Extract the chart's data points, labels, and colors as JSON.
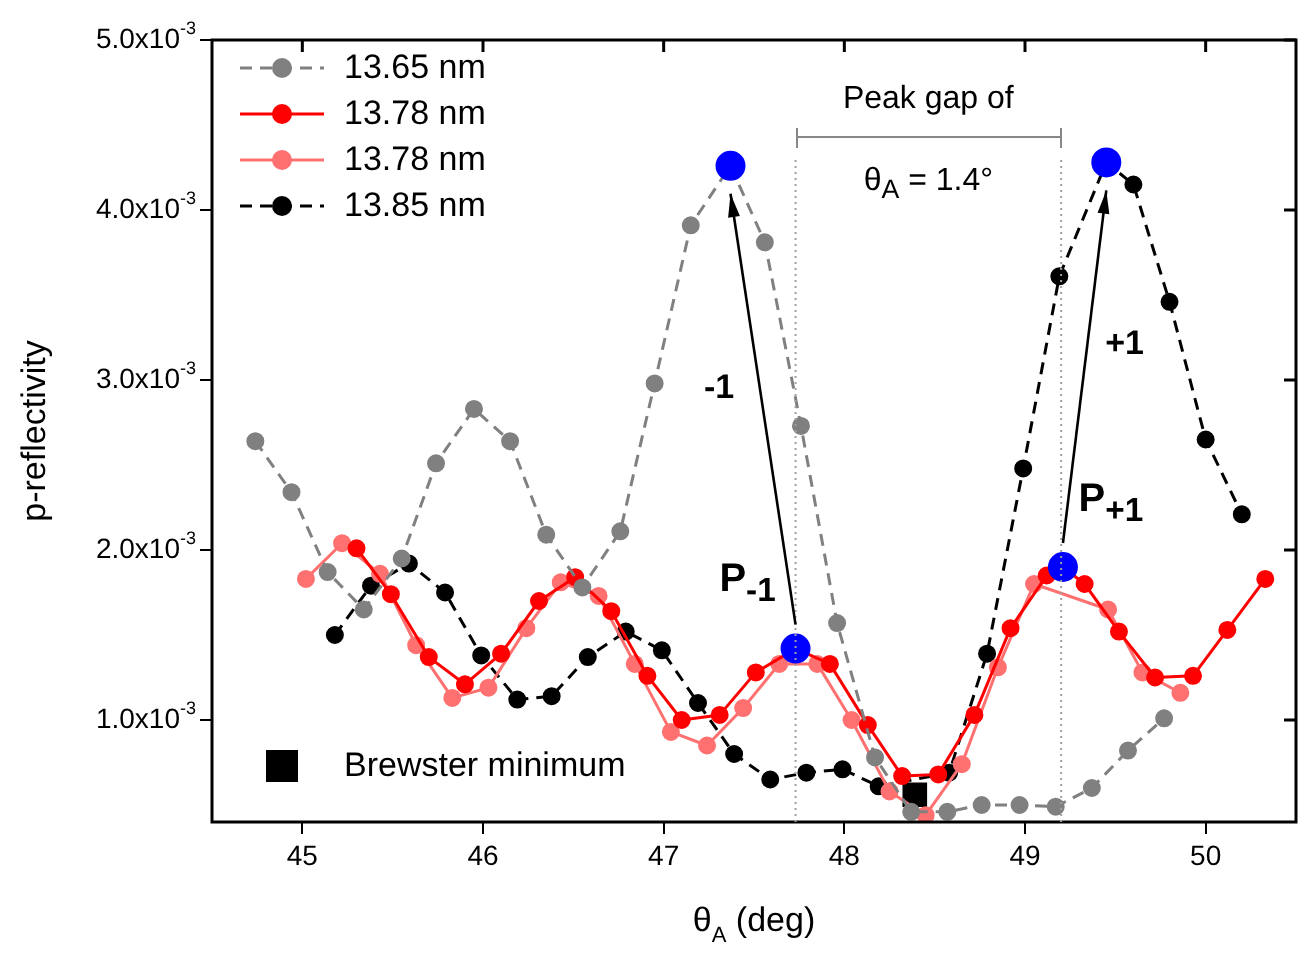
{
  "chart_data": {
    "type": "line",
    "xlabel": "θ$_{A}$ (deg)",
    "ylabel": "p-reflectivity",
    "xlim": [
      44.5,
      50.5
    ],
    "xticks": [
      45,
      46,
      47,
      48,
      49,
      50
    ],
    "ylim": [
      0.0004,
      0.005
    ],
    "yticks": [
      {
        "value": 0.001,
        "label": "1.0x10$^{-3}$"
      },
      {
        "value": 0.002,
        "label": "2.0x10$^{-3}$"
      },
      {
        "value": 0.003,
        "label": "3.0x10$^{-3}$"
      },
      {
        "value": 0.004,
        "label": "4.0x10$^{-3}$"
      },
      {
        "value": 0.005,
        "label": "5.0x10$^{-3}$"
      }
    ],
    "grid": false,
    "legend": "top left",
    "marker": "circle",
    "series": [
      {
        "name": "13.65 nm",
        "color": "#808080",
        "line_style": "dashed",
        "x": [
          44.74,
          44.94,
          45.14,
          45.34,
          45.55,
          45.74,
          45.95,
          46.15,
          46.35,
          46.55,
          46.76,
          46.95,
          47.15,
          47.37,
          47.56,
          47.76,
          47.96,
          48.17,
          48.37,
          48.57,
          48.76,
          48.97,
          49.17,
          49.37,
          49.57,
          49.77
        ],
        "values": [
          0.00264,
          0.00234,
          0.00187,
          0.00165,
          0.00195,
          0.00251,
          0.00283,
          0.00264,
          0.00209,
          0.00178,
          0.00211,
          0.00298,
          0.00391,
          0.00426,
          0.00381,
          0.00273,
          0.00157,
          0.00078,
          0.00046,
          0.00046,
          0.0005,
          0.0005,
          0.00049,
          0.0006,
          0.00082,
          0.00101
        ]
      },
      {
        "name": "13.78 nm",
        "color": "#ff0000",
        "line_style": "solid",
        "x": [
          45.3,
          45.49,
          45.7,
          45.9,
          46.1,
          46.31,
          46.51,
          46.71,
          46.91,
          47.1,
          47.31,
          47.51,
          47.73,
          47.92,
          48.13,
          48.32,
          48.52,
          48.72,
          48.92,
          49.12,
          49.21,
          49.33,
          49.52,
          49.72,
          49.93,
          50.12,
          50.33
        ],
        "values": [
          0.00201,
          0.00174,
          0.00137,
          0.00121,
          0.00139,
          0.0017,
          0.00184,
          0.00164,
          0.00126,
          0.001,
          0.00103,
          0.00128,
          0.00142,
          0.00133,
          0.00097,
          0.00067,
          0.00068,
          0.00103,
          0.00154,
          0.00185,
          0.0019,
          0.0018,
          0.00152,
          0.00125,
          0.00126,
          0.00153,
          0.00183
        ]
      },
      {
        "name": "13.78 nm",
        "color": "#ff7070",
        "line_style": "solid",
        "x": [
          45.02,
          45.22,
          45.43,
          45.63,
          45.83,
          46.03,
          46.24,
          46.43,
          46.64,
          46.84,
          47.04,
          47.24,
          47.44,
          47.64,
          47.85,
          48.04,
          48.25,
          48.45,
          48.65,
          48.85,
          49.05,
          49.46,
          49.65,
          49.86
        ],
        "values": [
          0.00183,
          0.00204,
          0.00186,
          0.00144,
          0.00113,
          0.00119,
          0.00154,
          0.00181,
          0.00173,
          0.00133,
          0.00093,
          0.00085,
          0.00107,
          0.00133,
          0.00133,
          0.001,
          0.00058,
          0.00044,
          0.00074,
          0.00131,
          0.0018,
          0.00165,
          0.00128,
          0.00116
        ]
      },
      {
        "name": "13.85 nm",
        "color": "#000000",
        "line_style": "dashed",
        "x": [
          45.18,
          45.38,
          45.59,
          45.79,
          45.99,
          46.19,
          46.38,
          46.58,
          46.79,
          46.99,
          47.19,
          47.39,
          47.59,
          47.79,
          47.99,
          48.19,
          48.58,
          48.79,
          48.99,
          49.19,
          49.45,
          49.6,
          49.8,
          50.0,
          50.2
        ],
        "values": [
          0.0015,
          0.00179,
          0.00192,
          0.00175,
          0.00138,
          0.00112,
          0.00114,
          0.00137,
          0.00152,
          0.00141,
          0.0011,
          0.0008,
          0.00065,
          0.00069,
          0.00071,
          0.00061,
          0.00069,
          0.00139,
          0.00248,
          0.00361,
          0.00428,
          0.00415,
          0.00346,
          0.00265,
          0.00221
        ]
      },
      {
        "name": "Brewster minimum",
        "type": "scatter",
        "marker": "square",
        "color": "#000000",
        "x": [
          48.39
        ],
        "values": [
          0.00056
        ]
      },
      {
        "type": "scatter",
        "color": "#0000ff",
        "x": [
          47.37,
          47.73,
          49.21,
          49.45
        ],
        "values": [
          0.00426,
          0.00142,
          0.0019,
          0.00428
        ]
      }
    ],
    "ref_lines": [
      {
        "axis": "x",
        "value": 47.73,
        "color": "#a0a0a0",
        "line_style": "dotted"
      },
      {
        "axis": "x",
        "value": 49.2,
        "color": "#a0a0a0",
        "line_style": "dotted"
      }
    ],
    "annotations": [
      "Peak gap of",
      "θ$_{A}$ = 1.4°",
      "-1",
      "+1",
      {
        "text": "P$_{-1}$",
        "x": 47.73,
        "y": 0.00142
      },
      {
        "text": "P$_{+1}$",
        "x": 49.21,
        "y": 0.0019
      }
    ]
  }
}
